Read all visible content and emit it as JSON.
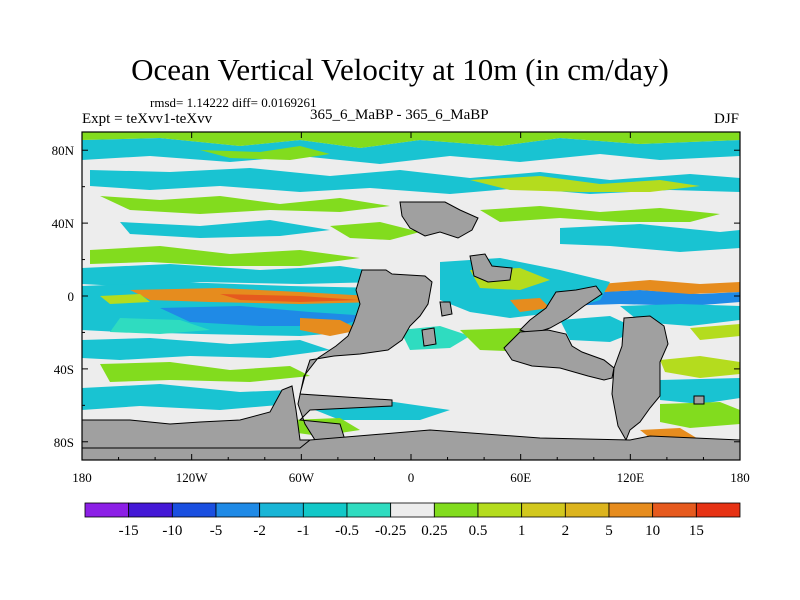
{
  "header": {
    "title": "Ocean Vertical Velocity at 10m (in cm/day)",
    "stats": "rmsd= 1.14222 diff= 0.0169261",
    "experiment": "Expt = teXvv1-teXvv",
    "cases": "365_6_MaBP - 365_6_MaBP",
    "season": "DJF"
  },
  "chart_data": {
    "type": "heatmap",
    "title": "Ocean Vertical Velocity at 10m (in cm/day)",
    "x_axis": {
      "range": [
        -180,
        180
      ],
      "ticks": [
        {
          "value": -180,
          "label": "180"
        },
        {
          "value": -120,
          "label": "120W"
        },
        {
          "value": -60,
          "label": "60W"
        },
        {
          "value": 0,
          "label": "0"
        },
        {
          "value": 60,
          "label": "60E"
        },
        {
          "value": 120,
          "label": "120E"
        },
        {
          "value": 180,
          "label": "180"
        }
      ]
    },
    "y_axis": {
      "range": [
        -90,
        90
      ],
      "ticks": [
        {
          "value": 80,
          "label": "80N"
        },
        {
          "value": 40,
          "label": "40N"
        },
        {
          "value": 0,
          "label": "0"
        },
        {
          "value": -40,
          "label": "40S"
        },
        {
          "value": -80,
          "label": "80S"
        }
      ]
    },
    "colorbar": {
      "colors": [
        "#8c1fe6",
        "#4418d6",
        "#1a4fe0",
        "#1f8ae6",
        "#19b5d6",
        "#12c8c8",
        "#2fdcc0",
        "#ededed",
        "#82dc1e",
        "#b4dc1e",
        "#d2c81e",
        "#dcb41e",
        "#e68c1e",
        "#e65a1e",
        "#e63214"
      ],
      "labels": [
        "-15",
        "-10",
        "-5",
        "-2",
        "-1",
        "-0.5",
        "-0.25",
        "0.25",
        "0.5",
        "1",
        "2",
        "5",
        "10",
        "15"
      ]
    },
    "land_color": "#a0a0a0",
    "field_palette": {
      "background": "#ededed",
      "cyan": "#19c3d2",
      "teal": "#2fdcc0",
      "green": "#82dc1e",
      "yellow_green": "#b4dc1e",
      "blue": "#1f8ae6",
      "orange": "#e68c1e",
      "red_orange": "#e65a1e"
    }
  }
}
